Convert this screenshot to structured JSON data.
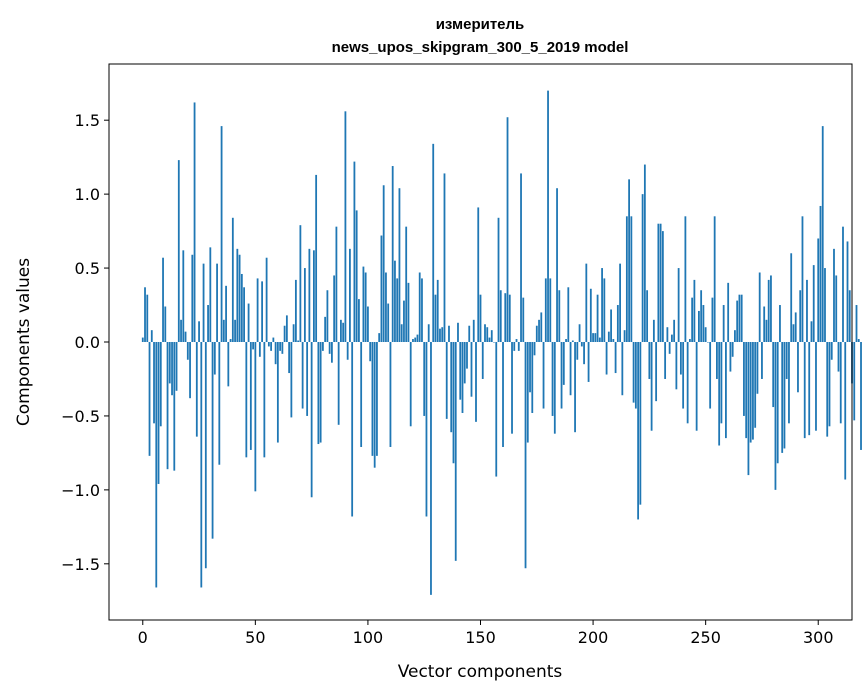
{
  "chart_data": {
    "type": "bar",
    "title": "измеритель",
    "subtitle": "news_upos_skipgram_300_5_2019 model",
    "xlabel": "Vector components",
    "ylabel": "Components values",
    "xlim": [
      -15,
      315
    ],
    "ylim": [
      -1.88,
      1.88
    ],
    "xticks": [
      0,
      50,
      100,
      150,
      200,
      250,
      300
    ],
    "yticks": [
      -1.5,
      -1.0,
      -0.5,
      0.0,
      0.5,
      1.0,
      1.5
    ],
    "xtick_labels": [
      "0",
      "50",
      "100",
      "150",
      "200",
      "250",
      "300"
    ],
    "ytick_labels": [
      "−1.5",
      "−1.0",
      "−0.5",
      "0.0",
      "0.5",
      "1.0",
      "1.5"
    ],
    "grid": false,
    "legend": "none",
    "bar_color": "#1f77b4",
    "values": [
      0.03,
      0.37,
      0.32,
      -0.77,
      0.08,
      -0.55,
      -1.66,
      -0.96,
      -0.57,
      0.57,
      0.24,
      -0.86,
      -0.28,
      -0.36,
      -0.87,
      -0.33,
      1.23,
      0.15,
      0.62,
      0.07,
      -0.12,
      -0.38,
      0.59,
      1.62,
      -0.64,
      0.14,
      -1.66,
      0.53,
      -1.53,
      0.25,
      0.64,
      -1.33,
      -0.22,
      0.53,
      -0.83,
      1.46,
      0.15,
      0.38,
      -0.3,
      0.02,
      0.84,
      0.15,
      0.63,
      0.59,
      0.46,
      0.37,
      -0.78,
      0.26,
      -0.73,
      -0.05,
      -1.01,
      0.43,
      -0.1,
      0.41,
      -0.78,
      0.57,
      -0.03,
      -0.06,
      0.03,
      -0.15,
      -0.68,
      -0.06,
      -0.08,
      0.11,
      0.18,
      -0.21,
      -0.51,
      0.12,
      0.42,
      0.01,
      0.79,
      -0.45,
      0.5,
      -0.5,
      0.63,
      -1.05,
      0.62,
      1.13,
      -0.69,
      -0.68,
      -0.06,
      0.17,
      0.35,
      -0.08,
      -0.14,
      0.45,
      0.78,
      -0.56,
      0.15,
      0.13,
      1.56,
      -0.12,
      0.63,
      -1.18,
      1.22,
      0.89,
      0.29,
      -0.71,
      0.51,
      0.47,
      0.24,
      -0.13,
      -0.77,
      -0.85,
      -0.77,
      0.06,
      0.72,
      1.06,
      0.47,
      0.26,
      -0.71,
      1.19,
      0.55,
      0.43,
      1.04,
      0.12,
      0.28,
      0.78,
      0.4,
      -0.57,
      0.02,
      0.03,
      0.05,
      0.47,
      0.43,
      -0.5,
      -1.18,
      0.12,
      -1.71,
      1.34,
      0.32,
      0.42,
      0.09,
      0.1,
      1.14,
      -0.52,
      0.11,
      -0.61,
      -0.82,
      -1.48,
      0.13,
      -0.39,
      -0.48,
      -0.28,
      -0.18,
      0.11,
      -0.37,
      0.15,
      -0.54,
      0.91,
      0.32,
      -0.25,
      0.12,
      0.1,
      0.03,
      0.08,
      0.0,
      -0.91,
      0.84,
      0.35,
      -0.71,
      0.33,
      1.52,
      0.32,
      -0.62,
      -0.06,
      0.02,
      -0.06,
      1.14,
      0.3,
      -1.53,
      -0.68,
      -0.34,
      -0.48,
      -0.09,
      0.11,
      0.15,
      0.2,
      -0.45,
      0.43,
      1.7,
      0.43,
      -0.5,
      -0.62,
      1.04,
      0.35,
      -0.45,
      -0.29,
      0.02,
      0.37,
      -0.36,
      0.01,
      -0.61,
      -0.12,
      0.12,
      -0.03,
      -0.15,
      0.53,
      -0.27,
      0.36,
      0.06,
      0.06,
      0.32,
      0.03,
      0.5,
      0.43,
      -0.22,
      0.07,
      0.22,
      0.02,
      -0.21,
      0.25,
      0.53,
      -0.36,
      0.08,
      0.85,
      1.1,
      0.85,
      -0.41,
      -0.45,
      -1.2,
      -1.1,
      1.0,
      1.2,
      0.35,
      -0.25,
      -0.6,
      0.15,
      -0.4,
      0.8,
      0.8,
      0.75,
      -0.25,
      0.1,
      -0.08,
      0.05,
      0.15,
      -0.32,
      0.5,
      -0.22,
      -0.45,
      0.85,
      -0.55,
      0.02,
      0.3,
      0.42,
      -0.6,
      0.21,
      0.35,
      0.25,
      0.1,
      0.0,
      -0.45,
      0.3,
      0.85,
      -0.25,
      -0.7,
      -0.55,
      0.25,
      -0.65,
      0.4,
      -0.2,
      -0.1,
      0.08,
      0.28,
      0.32,
      0.32,
      -0.5,
      -0.65,
      -0.9,
      -0.68,
      -0.66,
      -0.58,
      -0.35,
      0.47,
      -0.25,
      0.24,
      0.15,
      0.42,
      0.45,
      -0.44,
      -1.0,
      -0.82,
      0.25,
      -0.75,
      -0.72,
      -0.25,
      -0.55,
      0.6,
      0.12,
      0.2,
      -0.34,
      0.35,
      0.85,
      -0.65,
      0.42,
      -0.63,
      0.14,
      0.52,
      -0.6,
      0.7,
      0.92,
      1.46,
      0.5,
      -0.64,
      -0.57,
      -0.12,
      0.63,
      0.45,
      -0.2,
      -0.55,
      0.78,
      -0.93,
      0.68,
      0.35,
      -0.28,
      -0.53,
      0.25,
      0.02,
      -0.73
    ]
  }
}
